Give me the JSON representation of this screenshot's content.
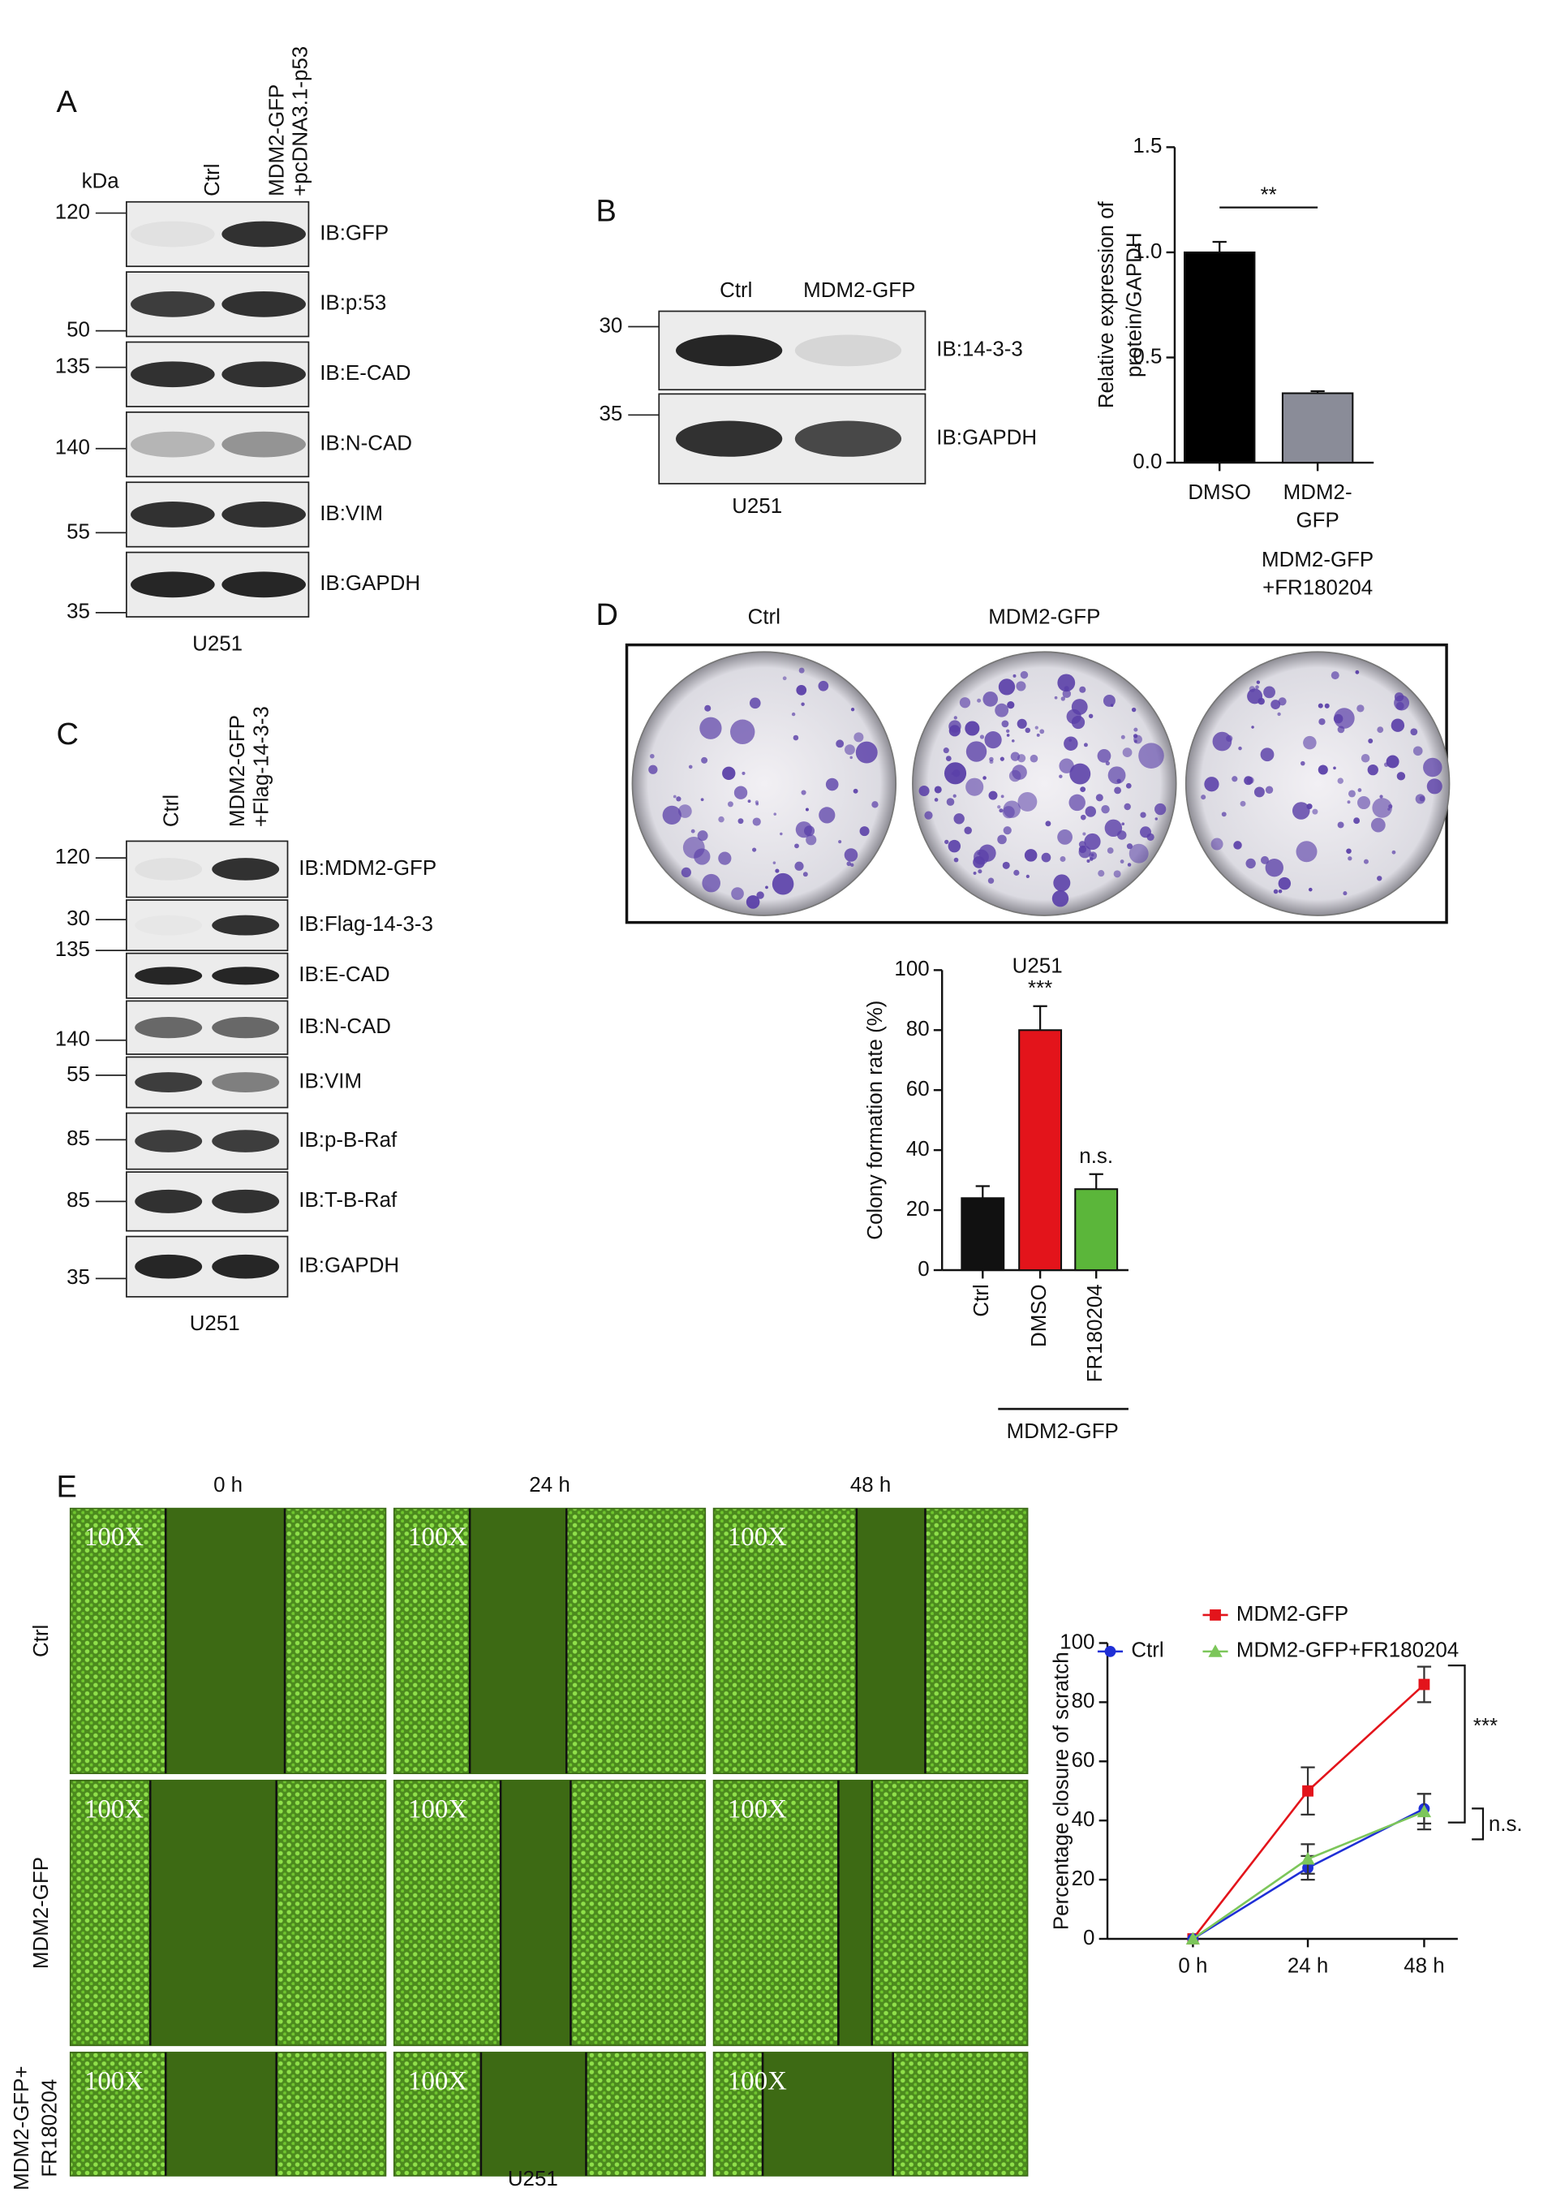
{
  "panels": {
    "A": {
      "label": "A",
      "unit": "kDa",
      "lanes": [
        [
          "Ctrl"
        ],
        [
          "MDM2-GFP",
          "+pcDNA3.1-p53"
        ]
      ],
      "markers": [
        120,
        50,
        135,
        140,
        55,
        35
      ],
      "blots": [
        "IB:GFP",
        "IB:p:53",
        "IB:E-CAD",
        "IB:N-CAD",
        "IB:VIM",
        "IB:GAPDH"
      ],
      "cell_line": "U251"
    },
    "B": {
      "label": "B",
      "lanes": [
        [
          "Ctrl"
        ],
        [
          "MDM2-GFP"
        ]
      ],
      "markers": [
        30,
        35
      ],
      "blots": [
        "IB:14-3-3",
        "IB:GAPDH"
      ],
      "cell_line": "U251"
    },
    "C": {
      "label": "C",
      "lanes": [
        [
          "Ctrl"
        ],
        [
          "MDM2-GFP",
          "+Flag-14-3-3"
        ]
      ],
      "markers": [
        120,
        30,
        135,
        140,
        55,
        85,
        85,
        35
      ],
      "blots": [
        "IB:MDM2-GFP",
        "IB:Flag-14-3-3",
        "IB:E-CAD",
        "IB:N-CAD",
        "IB:VIM",
        "IB:p-B-Raf",
        "IB:T-B-Raf",
        "IB:GAPDH"
      ],
      "cell_line": "U251"
    },
    "D": {
      "label": "D",
      "plates": [
        [
          "Ctrl"
        ],
        [
          "MDM2-GFP"
        ],
        [
          "MDM2-GFP",
          "+FR180204"
        ]
      ]
    },
    "E": {
      "label": "E",
      "times": [
        "0 h",
        "24 h",
        "48 h"
      ],
      "rows": [
        [
          "Ctrl"
        ],
        [
          "MDM2-GFP"
        ],
        [
          "MDM2-GFP+",
          "FR180204"
        ]
      ],
      "magnification": "100X",
      "cell_line": "U251"
    }
  },
  "chart_data": [
    {
      "type": "bar",
      "ylabel": [
        "Relative expression of",
        "protein/GAPDH"
      ],
      "categories": [
        [
          "DMSO"
        ],
        [
          "MDM2-",
          "GFP"
        ]
      ],
      "values": [
        1.0,
        0.33
      ],
      "errors": [
        0.05,
        0.01
      ],
      "colors": [
        "#000000",
        "#8a8c98"
      ],
      "ylim": [
        0,
        1.5
      ],
      "yticks": [
        {
          "value": 0,
          "label": "0.0"
        },
        0.5,
        {
          "value": 1,
          "label": "1.0"
        },
        1.5
      ],
      "annotations": [
        "**"
      ]
    },
    {
      "type": "bar",
      "title": "U251",
      "ylabel": [
        "Colony formation rate (%)"
      ],
      "categories": [
        [
          "Ctrl"
        ],
        [
          "DMSO"
        ],
        [
          "FR180204"
        ]
      ],
      "values": [
        24,
        80,
        27
      ],
      "errors": [
        4,
        8,
        5
      ],
      "colors": [
        "#111111",
        "#e3141b",
        "#5bb63a"
      ],
      "ylim": [
        0,
        100
      ],
      "yticks": [
        0,
        20,
        40,
        60,
        80,
        100
      ],
      "annotations": [
        "***",
        "n.s."
      ],
      "group_label": "MDM2-GFP"
    },
    {
      "type": "line",
      "ylabel": [
        "Percentage closure of scratch"
      ],
      "x": [
        "0 h",
        "24 h",
        "48 h"
      ],
      "ylim": [
        0,
        100
      ],
      "yticks": [
        0,
        20,
        40,
        60,
        80,
        100
      ],
      "series": [
        {
          "name": "MDM2-GFP",
          "color": "#e3141b",
          "marker": "square",
          "values": [
            0,
            50,
            86
          ],
          "errors": [
            0,
            8,
            6
          ]
        },
        {
          "name": "Ctrl",
          "color": "#1f2fd6",
          "marker": "circle",
          "values": [
            0,
            24,
            44
          ],
          "errors": [
            0,
            4,
            5
          ]
        },
        {
          "name": "MDM2-GFP+FR180204",
          "color": "#7cc65a",
          "marker": "triangle",
          "values": [
            0,
            27,
            43
          ],
          "errors": [
            0,
            5,
            6
          ]
        }
      ],
      "annotations": [
        "***",
        "n.s."
      ]
    }
  ]
}
